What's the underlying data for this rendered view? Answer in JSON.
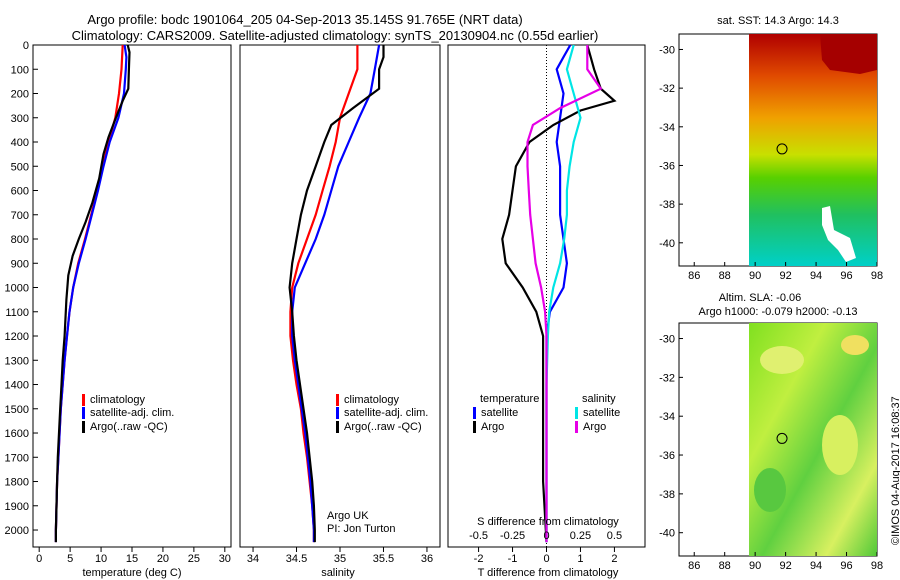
{
  "header": {
    "title_line1": "Argo profile: bodc 1901064_205 04-Sep-2013 35.145S 91.765E (NRT data)",
    "title_line2": "Climatology: CARS2009. Satellite-adjusted climatology: synTS_20130904.nc (0.55d earlier)"
  },
  "colors": {
    "climatology": "#ff0000",
    "satellite": "#0000ff",
    "argo": "#000000",
    "sat_salinity": "#00e5e5",
    "argo_salinity": "#e600e6"
  },
  "chart_data": [
    {
      "id": "temperature",
      "type": "line",
      "xlabel": "temperature (deg C)",
      "ylabel": "",
      "xlim": [
        -1,
        31
      ],
      "ylim": [
        2070,
        0
      ],
      "xticks": [
        "0",
        "5",
        "10",
        "15",
        "20",
        "25",
        "30"
      ],
      "yticks": [
        "0",
        "100",
        "200",
        "300",
        "400",
        "500",
        "600",
        "700",
        "800",
        "900",
        "1000",
        "1100",
        "1200",
        "1300",
        "1400",
        "1500",
        "1600",
        "1700",
        "1800",
        "1900",
        "2000"
      ],
      "legend": [
        "climatology",
        "satellite-adj. clim.",
        "Argo(..raw -QC)"
      ],
      "series": [
        {
          "name": "climatology",
          "color": "#ff0000",
          "points": [
            [
              13.5,
              0
            ],
            [
              13.3,
              100
            ],
            [
              12.9,
              200
            ],
            [
              12.3,
              300
            ],
            [
              11.2,
              400
            ],
            [
              10.3,
              500
            ],
            [
              9.4,
              600
            ],
            [
              8.4,
              700
            ],
            [
              7.4,
              800
            ],
            [
              6.3,
              900
            ],
            [
              5.5,
              1000
            ],
            [
              4.9,
              1100
            ],
            [
              4.5,
              1200
            ],
            [
              4.1,
              1300
            ],
            [
              3.8,
              1400
            ],
            [
              3.5,
              1500
            ],
            [
              3.3,
              1600
            ],
            [
              3.1,
              1700
            ],
            [
              2.9,
              1800
            ],
            [
              2.8,
              1900
            ],
            [
              2.7,
              2000
            ],
            [
              2.7,
              2050
            ]
          ]
        },
        {
          "name": "satellite-adj. clim.",
          "color": "#0000ff",
          "points": [
            [
              13.8,
              0
            ],
            [
              14.1,
              50
            ],
            [
              14.0,
              100
            ],
            [
              13.7,
              200
            ],
            [
              12.8,
              300
            ],
            [
              11.4,
              400
            ],
            [
              10.4,
              500
            ],
            [
              9.5,
              600
            ],
            [
              8.5,
              700
            ],
            [
              7.5,
              800
            ],
            [
              6.4,
              900
            ],
            [
              5.5,
              1000
            ],
            [
              4.9,
              1100
            ],
            [
              4.5,
              1200
            ],
            [
              4.1,
              1300
            ],
            [
              3.8,
              1400
            ],
            [
              3.5,
              1500
            ],
            [
              3.3,
              1600
            ],
            [
              3.1,
              1700
            ],
            [
              2.9,
              1800
            ],
            [
              2.8,
              1900
            ],
            [
              2.7,
              2000
            ],
            [
              2.7,
              2050
            ]
          ]
        },
        {
          "name": "Argo(..raw -QC)",
          "color": "#000000",
          "points": [
            [
              14.3,
              0
            ],
            [
              14.6,
              30
            ],
            [
              14.5,
              100
            ],
            [
              14.4,
              180
            ],
            [
              13.5,
              230
            ],
            [
              12.4,
              300
            ],
            [
              11.2,
              380
            ],
            [
              10.4,
              450
            ],
            [
              9.7,
              550
            ],
            [
              8.6,
              650
            ],
            [
              7.5,
              730
            ],
            [
              6.4,
              800
            ],
            [
              5.4,
              870
            ],
            [
              4.7,
              950
            ],
            [
              4.4,
              1050
            ],
            [
              4.1,
              1200
            ],
            [
              3.8,
              1300
            ],
            [
              3.6,
              1400
            ],
            [
              3.4,
              1500
            ],
            [
              3.2,
              1600
            ],
            [
              3.0,
              1700
            ],
            [
              2.9,
              1800
            ],
            [
              2.8,
              1900
            ],
            [
              2.7,
              2000
            ],
            [
              2.7,
              2050
            ]
          ]
        }
      ]
    },
    {
      "id": "salinity",
      "type": "line",
      "xlabel": "salinity",
      "xlim": [
        33.85,
        36.15
      ],
      "ylim": [
        2070,
        0
      ],
      "xticks": [
        "34",
        "34.5",
        "35",
        "35.5",
        "36"
      ],
      "legend": [
        "climatology",
        "satellite-adj. clim.",
        "Argo(..raw -QC)"
      ],
      "annotation_line1": "Argo UK",
      "annotation_line2": "PI: Jon Turton",
      "series": [
        {
          "name": "climatology",
          "color": "#ff0000",
          "points": [
            [
              35.2,
              0
            ],
            [
              35.2,
              100
            ],
            [
              35.1,
              200
            ],
            [
              35.0,
              300
            ],
            [
              34.95,
              400
            ],
            [
              34.88,
              500
            ],
            [
              34.8,
              600
            ],
            [
              34.72,
              700
            ],
            [
              34.62,
              800
            ],
            [
              34.52,
              900
            ],
            [
              34.45,
              1000
            ],
            [
              34.43,
              1100
            ],
            [
              34.43,
              1200
            ],
            [
              34.46,
              1300
            ],
            [
              34.5,
              1400
            ],
            [
              34.55,
              1500
            ],
            [
              34.58,
              1600
            ],
            [
              34.62,
              1700
            ],
            [
              34.65,
              1800
            ],
            [
              34.68,
              1900
            ],
            [
              34.7,
              2000
            ],
            [
              34.7,
              2050
            ]
          ]
        },
        {
          "name": "satellite-adj. clim.",
          "color": "#0000ff",
          "points": [
            [
              35.45,
              0
            ],
            [
              35.4,
              100
            ],
            [
              35.35,
              200
            ],
            [
              35.22,
              300
            ],
            [
              35.1,
              400
            ],
            [
              34.98,
              500
            ],
            [
              34.9,
              600
            ],
            [
              34.82,
              700
            ],
            [
              34.72,
              800
            ],
            [
              34.6,
              900
            ],
            [
              34.48,
              1000
            ],
            [
              34.45,
              1100
            ],
            [
              34.45,
              1200
            ],
            [
              34.48,
              1300
            ],
            [
              34.52,
              1400
            ],
            [
              34.56,
              1500
            ],
            [
              34.6,
              1600
            ],
            [
              34.63,
              1700
            ],
            [
              34.66,
              1800
            ],
            [
              34.68,
              1900
            ],
            [
              34.7,
              2000
            ],
            [
              34.7,
              2050
            ]
          ]
        },
        {
          "name": "Argo(..raw -QC)",
          "color": "#000000",
          "points": [
            [
              35.5,
              0
            ],
            [
              35.5,
              50
            ],
            [
              35.45,
              100
            ],
            [
              35.45,
              180
            ],
            [
              35.15,
              260
            ],
            [
              34.9,
              330
            ],
            [
              34.82,
              400
            ],
            [
              34.72,
              500
            ],
            [
              34.62,
              600
            ],
            [
              34.55,
              700
            ],
            [
              34.5,
              800
            ],
            [
              34.45,
              900
            ],
            [
              34.42,
              1000
            ],
            [
              34.45,
              1100
            ],
            [
              34.47,
              1200
            ],
            [
              34.5,
              1300
            ],
            [
              34.54,
              1400
            ],
            [
              34.58,
              1500
            ],
            [
              34.62,
              1600
            ],
            [
              34.65,
              1700
            ],
            [
              34.68,
              1800
            ],
            [
              34.7,
              1900
            ],
            [
              34.71,
              2000
            ],
            [
              34.71,
              2050
            ]
          ]
        }
      ]
    },
    {
      "id": "differences",
      "type": "line",
      "xlabel": "T difference from climatology",
      "xlabel_top": "S difference from climatology",
      "xlim": [
        -2.9,
        2.9
      ],
      "ylim": [
        2070,
        0
      ],
      "xticks": [
        "-2",
        "-1",
        "0",
        "1",
        "2"
      ],
      "xticks_top": [
        "-0.5",
        "-0.25",
        "0",
        "0.25",
        "0.5"
      ],
      "legend_temperature_heading": "temperature",
      "legend_salinity_heading": "salinity",
      "legend": [
        "satellite",
        "Argo",
        "satellite",
        "Argo"
      ],
      "series": [
        {
          "name": "temperature satellite",
          "color": "#0000ff",
          "points": [
            [
              0.7,
              0
            ],
            [
              0.5,
              50
            ],
            [
              0.3,
              100
            ],
            [
              0.5,
              200
            ],
            [
              0.4,
              300
            ],
            [
              0.3,
              400
            ],
            [
              0.4,
              500
            ],
            [
              0.4,
              600
            ],
            [
              0.4,
              700
            ],
            [
              0.5,
              800
            ],
            [
              0.6,
              900
            ],
            [
              0.5,
              1000
            ],
            [
              0.1,
              1100
            ],
            [
              0.0,
              1200
            ],
            [
              0.0,
              1400
            ],
            [
              0.0,
              1600
            ],
            [
              0.0,
              2050
            ]
          ]
        },
        {
          "name": "temperature Argo",
          "color": "#000000",
          "points": [
            [
              1.2,
              0
            ],
            [
              1.3,
              50
            ],
            [
              1.4,
              100
            ],
            [
              1.6,
              180
            ],
            [
              2.0,
              230
            ],
            [
              1.0,
              270
            ],
            [
              0.2,
              330
            ],
            [
              -0.5,
              400
            ],
            [
              -0.9,
              500
            ],
            [
              -1.0,
              600
            ],
            [
              -1.1,
              700
            ],
            [
              -1.3,
              800
            ],
            [
              -1.2,
              900
            ],
            [
              -0.7,
              1000
            ],
            [
              -0.3,
              1100
            ],
            [
              -0.1,
              1200
            ],
            [
              -0.1,
              1400
            ],
            [
              -0.1,
              1600
            ],
            [
              -0.1,
              1800
            ],
            [
              0.0,
              2050
            ]
          ]
        },
        {
          "name": "salinity satellite",
          "color": "#00e5e5",
          "points": [
            [
              0.2,
              0
            ],
            [
              0.15,
              100
            ],
            [
              0.2,
              200
            ],
            [
              0.25,
              300
            ],
            [
              0.2,
              400
            ],
            [
              0.17,
              500
            ],
            [
              0.15,
              600
            ],
            [
              0.15,
              700
            ],
            [
              0.13,
              800
            ],
            [
              0.1,
              900
            ],
            [
              0.05,
              1000
            ],
            [
              0.02,
              1100
            ],
            [
              0.01,
              1200
            ],
            [
              0.0,
              1400
            ],
            [
              0.0,
              2050
            ]
          ]
        },
        {
          "name": "salinity Argo",
          "color": "#e600e6",
          "points": [
            [
              0.3,
              0
            ],
            [
              0.3,
              100
            ],
            [
              0.4,
              180
            ],
            [
              0.1,
              260
            ],
            [
              -0.1,
              330
            ],
            [
              -0.14,
              400
            ],
            [
              -0.14,
              500
            ],
            [
              -0.13,
              600
            ],
            [
              -0.12,
              700
            ],
            [
              -0.1,
              800
            ],
            [
              -0.08,
              900
            ],
            [
              -0.04,
              1000
            ],
            [
              -0.01,
              1100
            ],
            [
              0.0,
              1200
            ],
            [
              0.0,
              2050
            ]
          ]
        }
      ]
    }
  ],
  "maps": {
    "sst": {
      "title": "sat. SST: 14.3 Argo: 14.3",
      "xticks": [
        "86",
        "88",
        "90",
        "92",
        "94",
        "96",
        "98"
      ],
      "yticks": [
        "-30",
        "-32",
        "-34",
        "-36",
        "-38",
        "-40"
      ],
      "argo_lon": 91.765,
      "argo_lat": -35.145
    },
    "sla": {
      "title_line1": "Altim. SLA: -0.06",
      "title_line2": "Argo h1000: -0.079 h2000: -0.13",
      "xticks": [
        "86",
        "88",
        "90",
        "92",
        "94",
        "96",
        "98"
      ],
      "yticks": [
        "-30",
        "-32",
        "-34",
        "-36",
        "-38",
        "-40"
      ],
      "argo_lon": 91.765,
      "argo_lat": -35.145
    }
  },
  "footer": {
    "credit": "©IMOS 04-Aug-2017 16:08:37"
  }
}
